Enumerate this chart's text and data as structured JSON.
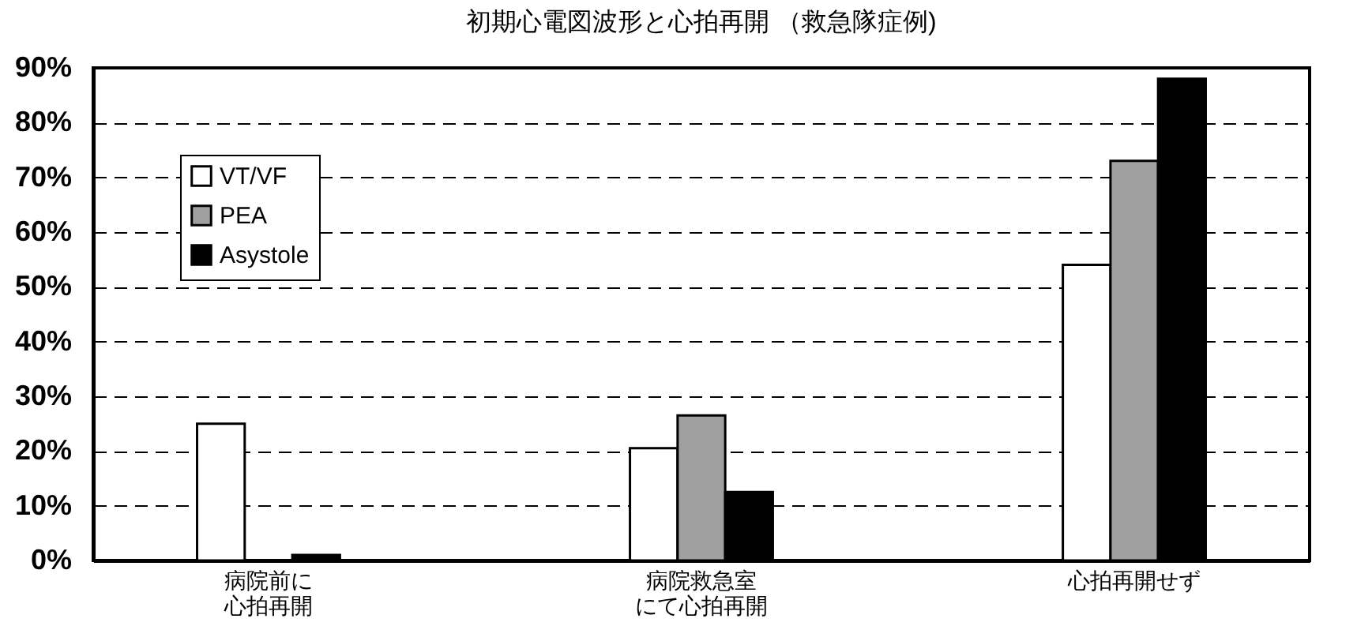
{
  "chart_data": {
    "type": "bar",
    "title": "初期心電図波形と心拍再開 （救急隊症例)",
    "categories": [
      "病院前に心拍再開",
      "病院救急室にて心拍再開",
      "心拍再開せず"
    ],
    "series": [
      {
        "name": "VT/VF",
        "color": "#ffffff",
        "values": [
          25,
          20.5,
          54
        ]
      },
      {
        "name": "PEA",
        "color": "#a0a0a0",
        "values": [
          null,
          26.5,
          73
        ]
      },
      {
        "name": "Asystole",
        "color": "#000000",
        "values": [
          1,
          12.5,
          88
        ]
      }
    ],
    "ylim": [
      0,
      90
    ],
    "yticks": [
      {
        "value": 0,
        "label": "0%"
      },
      {
        "value": 10,
        "label": "10%"
      },
      {
        "value": 20,
        "label": "20%"
      },
      {
        "value": 30,
        "label": "30%"
      },
      {
        "value": 40,
        "label": "40%"
      },
      {
        "value": 50,
        "label": "50%"
      },
      {
        "value": 60,
        "label": "60%"
      },
      {
        "value": 70,
        "label": "70%"
      },
      {
        "value": 80,
        "label": "80%"
      },
      {
        "value": 90,
        "label": "90%"
      }
    ],
    "grid": "y",
    "legend": "top left"
  }
}
